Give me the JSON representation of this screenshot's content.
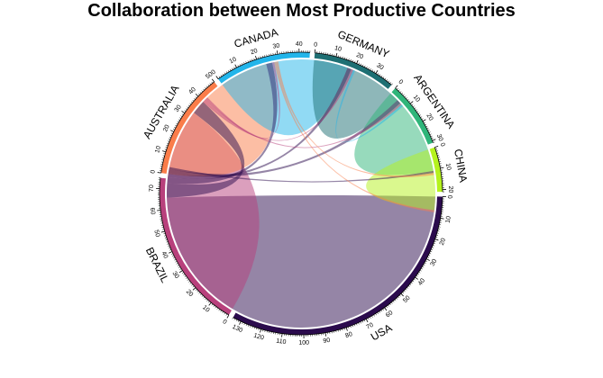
{
  "chart_data": {
    "type": "chord",
    "title": "Collaboration between Most Productive Countries",
    "sectors": [
      {
        "name": "USA",
        "total": 134,
        "color": "#2b0b4d"
      },
      {
        "name": "BRAZIL",
        "total": 75,
        "color": "#b8407c"
      },
      {
        "name": "AUSTRALIA",
        "total": 50,
        "color": "#fa7d4a"
      },
      {
        "name": "CANADA",
        "total": 45,
        "color": "#23b5ea"
      },
      {
        "name": "GERMANY",
        "total": 39,
        "color": "#1e6f73"
      },
      {
        "name": "ARGENTINA",
        "total": 31,
        "color": "#2fb57a"
      },
      {
        "name": "CHINA",
        "total": 21,
        "color": "#b5f21e"
      }
    ],
    "links": [
      {
        "from": "USA",
        "to": "USA",
        "value": 101
      },
      {
        "from": "BRAZIL",
        "to": "BRAZIL",
        "value": 55
      },
      {
        "from": "AUSTRALIA",
        "to": "AUSTRALIA",
        "value": 38
      },
      {
        "from": "CANADA",
        "to": "CANADA",
        "value": 32
      },
      {
        "from": "GERMANY",
        "to": "GERMANY",
        "value": 23
      },
      {
        "from": "ARGENTINA",
        "to": "ARGENTINA",
        "value": 22
      },
      {
        "from": "CHINA",
        "to": "CHINA",
        "value": 15
      },
      {
        "from": "USA",
        "to": "BRAZIL",
        "value": 7
      },
      {
        "from": "USA",
        "to": "AUSTRALIA",
        "value": 3
      },
      {
        "from": "USA",
        "to": "CANADA",
        "value": 2
      },
      {
        "from": "USA",
        "to": "GERMANY",
        "value": 2
      },
      {
        "from": "USA",
        "to": "ARGENTINA",
        "value": 1
      },
      {
        "from": "BRAZIL",
        "to": "CANADA",
        "value": 1
      },
      {
        "from": "BRAZIL",
        "to": "GERMANY",
        "value": 1
      },
      {
        "from": "BRAZIL",
        "to": "AUSTRALIA",
        "value": 1
      },
      {
        "from": "AUSTRALIA",
        "to": "CHINA",
        "value": 1
      },
      {
        "from": "AUSTRALIA",
        "to": "ARGENTINA",
        "value": 1
      },
      {
        "from": "CANADA",
        "to": "GERMANY",
        "value": 1
      }
    ],
    "axis_tick_step": 10
  }
}
